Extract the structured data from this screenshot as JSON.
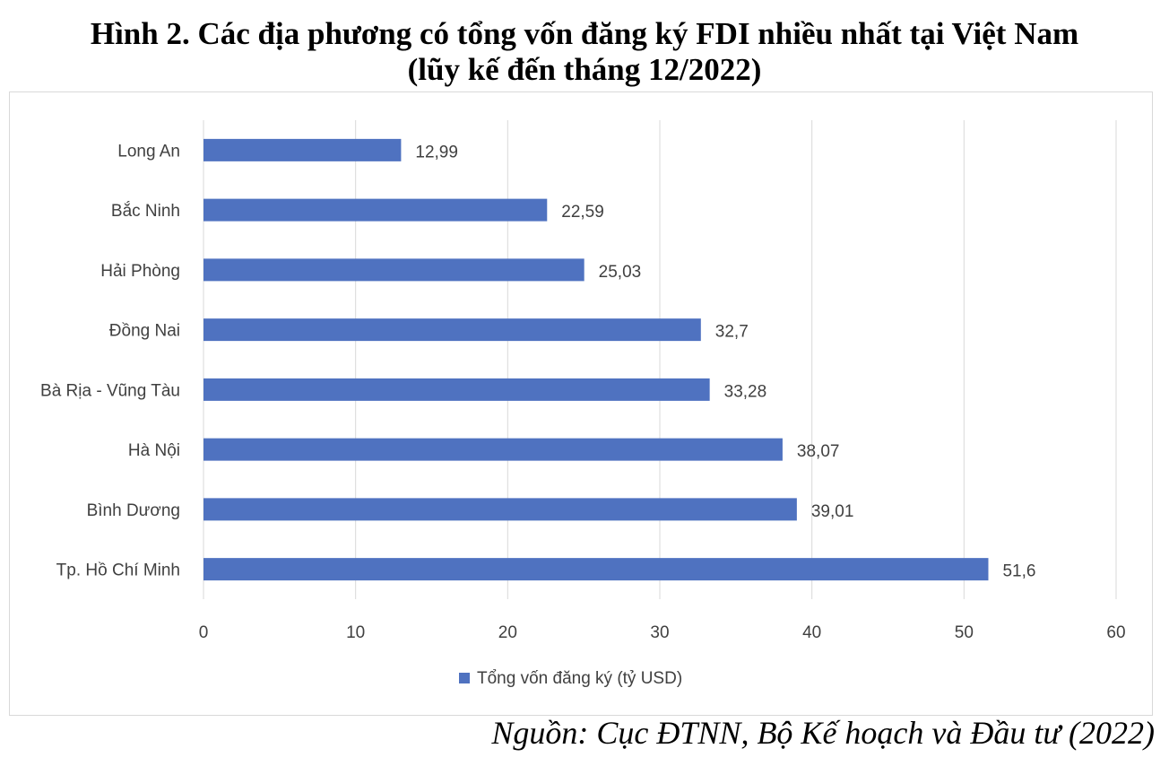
{
  "title_line1": "Hình 2. Các địa phương có tổng vốn đăng ký FDI nhiều nhất tại Việt Nam",
  "title_line2": "(lũy kế đến tháng 12/2022)",
  "source": "Nguồn: Cục ĐTNN, Bộ Kế hoạch và Đầu tư (2022)",
  "colors": {
    "bar": "#4f72c0",
    "grid": "#d9d9d9",
    "text": "#404040"
  },
  "chart_data": {
    "type": "bar",
    "orientation": "horizontal",
    "categories": [
      "Long An",
      "Bắc Ninh",
      "Hải Phòng",
      "Đồng Nai",
      "Bà Rịa - Vũng Tàu",
      "Hà Nội",
      "Bình Dương",
      "Tp. Hồ Chí Minh"
    ],
    "series": [
      {
        "name": "Tổng vốn đăng ký (tỷ USD)",
        "values": [
          12.99,
          22.59,
          25.03,
          32.7,
          33.28,
          38.07,
          39.01,
          51.6
        ]
      }
    ],
    "value_labels": [
      "12,99",
      "22,59",
      "25,03",
      "32,7",
      "33,28",
      "38,07",
      "39,01",
      "51,6"
    ],
    "xlim": [
      0,
      60
    ],
    "xticks": [
      0,
      10,
      20,
      30,
      40,
      50,
      60
    ],
    "grid": "vertical",
    "legend_position": "bottom"
  }
}
